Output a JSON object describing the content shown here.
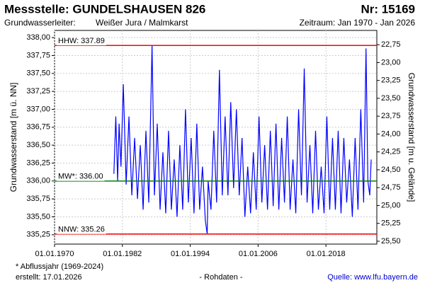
{
  "chart_data": {
    "type": "line",
    "title": "Messstelle: GUNDELSHAUSEN 826",
    "number": "Nr: 15169",
    "aquifer_label": "Grundwasserleiter:",
    "aquifer": "Weißer Jura / Malmkarst",
    "period": "Zeitraum: Jan 1970 - Jan 2026",
    "y_label": "Grundwasserstand [m ü. NN]",
    "y2_label": "Grundwasserstand [m u. Gelände]",
    "footnote": "* Abflussjahr (1969-2024)",
    "created": "erstellt:  17.01.2026",
    "data_note": "- Rohdaten -",
    "source": "Quelle:  www.lfu.bayern.de",
    "color": "#0000ff",
    "grid": true,
    "xlim": [
      "1970-01-01",
      "2027-01-01"
    ],
    "xticks": [
      {
        "value": "1970-01-01",
        "label": "01.01.1970"
      },
      {
        "value": "1982-01-01",
        "label": "01.01.1982"
      },
      {
        "value": "1994-01-01",
        "label": "01.01.1994"
      },
      {
        "value": "2006-01-01",
        "label": "01.01.2006"
      },
      {
        "value": "2018-01-01",
        "label": "01.01.2018"
      }
    ],
    "ylim": [
      335.12,
      338.1
    ],
    "yticks": [
      {
        "value": 338.0,
        "label": "338,00"
      },
      {
        "value": 337.75,
        "label": "337,75"
      },
      {
        "value": 337.5,
        "label": "337,50"
      },
      {
        "value": 337.25,
        "label": "337,25"
      },
      {
        "value": 337.0,
        "label": "337,00"
      },
      {
        "value": 336.75,
        "label": "336,75"
      },
      {
        "value": 336.5,
        "label": "336,50"
      },
      {
        "value": 336.25,
        "label": "336,25"
      },
      {
        "value": 336.0,
        "label": "336,00"
      },
      {
        "value": 335.75,
        "label": "335,75"
      },
      {
        "value": 335.5,
        "label": "335,50"
      },
      {
        "value": 335.25,
        "label": "335,25"
      }
    ],
    "y2lim": [
      22.55,
      25.54
    ],
    "y2_inverted": true,
    "y2ticks": [
      {
        "value": 22.75,
        "label": "22,75"
      },
      {
        "value": 23.0,
        "label": "23,00"
      },
      {
        "value": 23.25,
        "label": "23,25"
      },
      {
        "value": 23.5,
        "label": "23,50"
      },
      {
        "value": 23.75,
        "label": "23,75"
      },
      {
        "value": 24.0,
        "label": "24,00"
      },
      {
        "value": 24.25,
        "label": "24,25"
      },
      {
        "value": 24.5,
        "label": "24,50"
      },
      {
        "value": 24.75,
        "label": "24,75"
      },
      {
        "value": 25.0,
        "label": "25,00"
      },
      {
        "value": 25.25,
        "label": "25,25"
      },
      {
        "value": 25.5,
        "label": "25,50"
      }
    ],
    "reference_lines": [
      {
        "label": "HHW: 337.89",
        "value": 337.89,
        "color": "#ff0000"
      },
      {
        "label": "MW*: 336.00",
        "value": 336.0,
        "color": "#008000"
      },
      {
        "label": "NNW: 335.26",
        "value": 335.26,
        "color": "#ff0000"
      }
    ],
    "x": [
      "1980-07-01",
      "1980-11-01",
      "1981-03-01",
      "1981-06-01",
      "1981-10-01",
      "1982-03-01",
      "1982-09-01",
      "1983-03-01",
      "1983-09-01",
      "1984-03-01",
      "1984-09-01",
      "1985-03-01",
      "1985-09-01",
      "1986-03-01",
      "1986-09-01",
      "1987-04-01",
      "1987-09-01",
      "1988-03-01",
      "1988-09-01",
      "1989-03-01",
      "1989-09-01",
      "1990-03-01",
      "1990-09-01",
      "1991-03-01",
      "1991-09-01",
      "1992-03-01",
      "1992-09-01",
      "1993-03-01",
      "1993-09-01",
      "1994-03-01",
      "1994-09-01",
      "1995-03-01",
      "1995-09-01",
      "1996-03-01",
      "1996-09-01",
      "1997-01-01",
      "1997-03-01",
      "1997-09-01",
      "1998-03-01",
      "1998-09-01",
      "1999-03-01",
      "1999-09-01",
      "2000-03-01",
      "2000-09-01",
      "2001-03-01",
      "2001-09-01",
      "2002-03-01",
      "2002-09-01",
      "2003-03-01",
      "2003-09-01",
      "2004-03-01",
      "2004-09-01",
      "2005-03-01",
      "2005-09-01",
      "2006-03-01",
      "2006-09-01",
      "2007-03-01",
      "2007-09-01",
      "2008-03-01",
      "2008-09-01",
      "2009-03-01",
      "2009-09-01",
      "2010-03-01",
      "2010-09-01",
      "2011-03-01",
      "2011-09-01",
      "2012-03-01",
      "2012-09-01",
      "2013-03-01",
      "2013-09-01",
      "2014-03-01",
      "2014-09-01",
      "2015-03-01",
      "2015-09-01",
      "2016-03-01",
      "2016-09-01",
      "2017-03-01",
      "2017-09-01",
      "2018-03-01",
      "2018-09-01",
      "2019-03-01",
      "2019-09-01",
      "2020-03-01",
      "2020-09-01",
      "2021-03-01",
      "2021-09-01",
      "2022-03-01",
      "2022-09-01",
      "2023-03-01",
      "2023-09-01",
      "2024-03-01",
      "2024-09-01",
      "2025-02-01",
      "2025-06-01",
      "2025-10-01",
      "2026-01-01"
    ],
    "values": [
      336.1,
      336.9,
      336.0,
      336.8,
      336.2,
      337.35,
      335.95,
      336.9,
      335.8,
      336.6,
      335.75,
      336.5,
      335.6,
      336.7,
      335.7,
      337.89,
      335.8,
      336.8,
      335.6,
      336.4,
      335.55,
      336.7,
      335.6,
      336.3,
      335.5,
      336.5,
      335.6,
      337.0,
      335.7,
      336.6,
      335.55,
      336.8,
      335.6,
      336.2,
      335.45,
      335.26,
      336.0,
      335.6,
      336.7,
      335.7,
      337.55,
      335.8,
      336.9,
      335.8,
      337.1,
      335.9,
      337.0,
      335.8,
      336.6,
      335.5,
      336.2,
      335.55,
      336.4,
      335.6,
      336.9,
      335.7,
      336.5,
      335.6,
      336.7,
      335.65,
      336.8,
      335.6,
      336.6,
      335.7,
      336.9,
      335.6,
      336.3,
      335.55,
      337.0,
      335.8,
      337.57,
      335.7,
      336.5,
      335.55,
      336.7,
      335.6,
      336.2,
      335.55,
      336.9,
      335.6,
      336.6,
      335.6,
      336.7,
      335.55,
      336.6,
      335.7,
      336.3,
      335.5,
      336.6,
      335.6,
      337.0,
      335.7,
      337.85,
      336.0,
      335.8,
      336.3
    ]
  }
}
